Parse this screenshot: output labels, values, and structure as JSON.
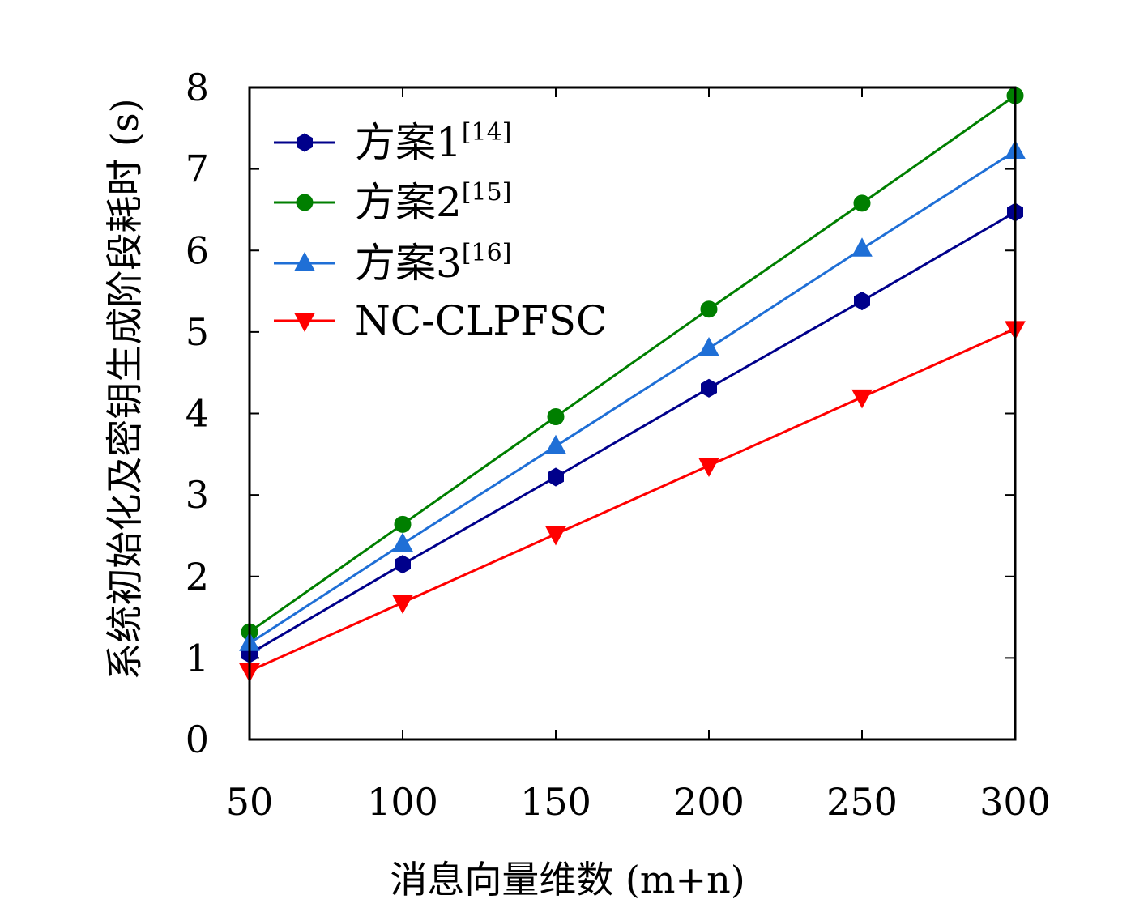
{
  "chart_data": {
    "type": "line",
    "xlabel": "消息向量维数 (m+n)",
    "ylabel": "系统初始化及密钥生成阶段耗时 (s)",
    "x": [
      50,
      100,
      150,
      200,
      250,
      300
    ],
    "xlim": [
      50,
      300
    ],
    "ylim": [
      0,
      8
    ],
    "x_ticks": [
      "50",
      "100",
      "150",
      "200",
      "250",
      "300"
    ],
    "y_ticks": [
      "0",
      "1",
      "2",
      "3",
      "4",
      "5",
      "6",
      "7",
      "8"
    ],
    "grid": false,
    "legend_position": "top-left",
    "series": [
      {
        "name": "方案1",
        "ref": "[14]",
        "color": "#00008b",
        "marker": "hexagon",
        "values": [
          1.05,
          2.15,
          3.22,
          4.31,
          5.38,
          6.47
        ]
      },
      {
        "name": "方案2",
        "ref": "[15]",
        "color": "#007f00",
        "marker": "circle",
        "values": [
          1.32,
          2.64,
          3.96,
          5.28,
          6.58,
          7.9
        ]
      },
      {
        "name": "方案3",
        "ref": "[16]",
        "color": "#1f6fd6",
        "marker": "triangle-up",
        "values": [
          1.18,
          2.4,
          3.6,
          4.8,
          6.02,
          7.22
        ]
      },
      {
        "name": "NC-CLPFSC",
        "ref": "",
        "color": "#ff0000",
        "marker": "triangle-down",
        "values": [
          0.84,
          1.68,
          2.52,
          3.36,
          4.2,
          5.04
        ]
      }
    ]
  }
}
